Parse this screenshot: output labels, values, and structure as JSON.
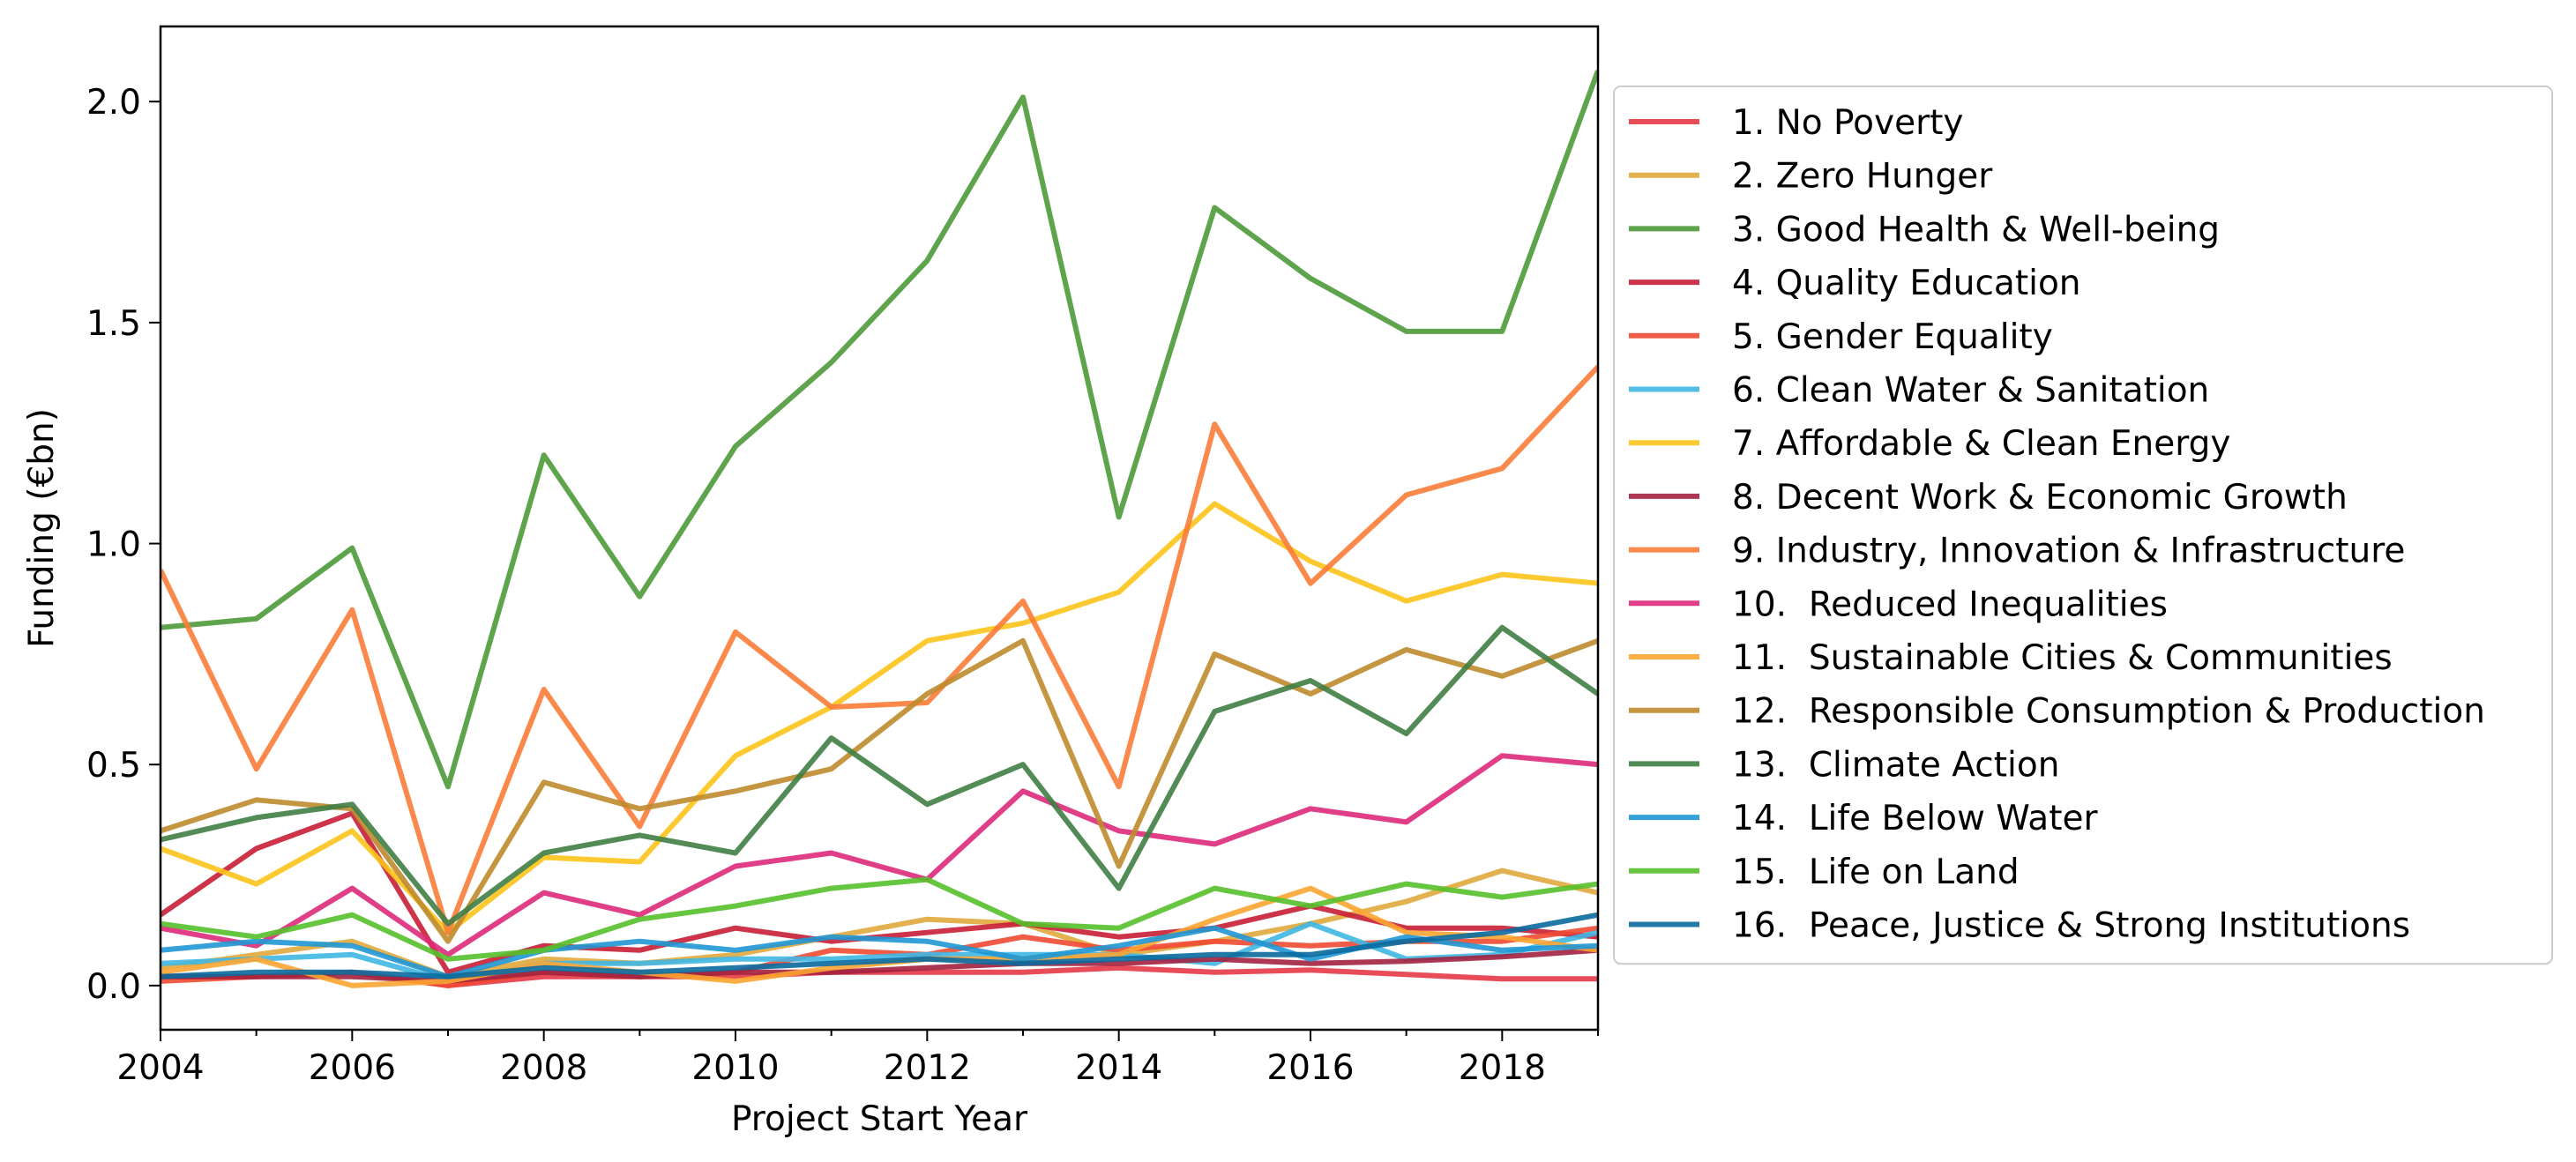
{
  "chart_data": {
    "type": "line",
    "xlabel": "Project Start Year",
    "ylabel": "Funding (€bn)",
    "xlim": [
      2004,
      2019
    ],
    "ylim": [
      -0.1,
      2.17
    ],
    "xticks": [
      2004,
      2006,
      2008,
      2010,
      2012,
      2014,
      2016,
      2018
    ],
    "yticks": [
      0.0,
      0.5,
      1.0,
      1.5,
      2.0
    ],
    "xtick_labels": [
      "2004",
      "2006",
      "2008",
      "2010",
      "2012",
      "2014",
      "2016",
      "2018"
    ],
    "ytick_labels": [
      "0.0",
      "0.5",
      "1.0",
      "1.5",
      "2.0"
    ],
    "grid": false,
    "legend_position": "right, outside plot",
    "x": [
      2004,
      2005,
      2006,
      2007,
      2008,
      2009,
      2010,
      2011,
      2012,
      2013,
      2014,
      2015,
      2016,
      2017,
      2018,
      2019
    ],
    "series": [
      {
        "name": "1. No Poverty",
        "color": "#e63946",
        "values": [
          0.02,
          0.02,
          0.03,
          0.0,
          0.02,
          0.02,
          0.02,
          0.03,
          0.03,
          0.03,
          0.04,
          0.03,
          0.035,
          0.025,
          0.015,
          0.015
        ]
      },
      {
        "name": "2. Zero Hunger",
        "color": "#e0a83c",
        "values": [
          0.04,
          0.07,
          0.1,
          0.02,
          0.06,
          0.05,
          0.07,
          0.11,
          0.15,
          0.14,
          0.07,
          0.1,
          0.14,
          0.19,
          0.26,
          0.21
        ]
      },
      {
        "name": "3. Good Health & Well-being",
        "color": "#4c9a3a",
        "values": [
          0.81,
          0.83,
          0.99,
          0.45,
          1.2,
          0.88,
          1.22,
          1.41,
          1.64,
          2.01,
          1.06,
          1.76,
          1.6,
          1.48,
          1.48,
          2.07
        ]
      },
      {
        "name": "4. Quality Education",
        "color": "#c91e35",
        "values": [
          0.16,
          0.31,
          0.39,
          0.03,
          0.09,
          0.08,
          0.13,
          0.1,
          0.12,
          0.14,
          0.11,
          0.13,
          0.18,
          0.13,
          0.13,
          0.11
        ]
      },
      {
        "name": "5. Gender Equality",
        "color": "#f04a32",
        "values": [
          0.01,
          0.02,
          0.03,
          0.0,
          0.03,
          0.02,
          0.03,
          0.08,
          0.07,
          0.11,
          0.08,
          0.1,
          0.09,
          0.1,
          0.1,
          0.13
        ]
      },
      {
        "name": "6. Clean Water & Sanitation",
        "color": "#3fb7e3",
        "values": [
          0.05,
          0.06,
          0.07,
          0.01,
          0.05,
          0.05,
          0.06,
          0.06,
          0.07,
          0.07,
          0.07,
          0.05,
          0.14,
          0.06,
          0.07,
          0.12
        ]
      },
      {
        "name": "7. Affordable & Clean Energy",
        "color": "#fcc419",
        "values": [
          0.31,
          0.23,
          0.35,
          0.12,
          0.29,
          0.28,
          0.52,
          0.63,
          0.78,
          0.82,
          0.89,
          1.09,
          0.96,
          0.87,
          0.93,
          0.91
        ]
      },
      {
        "name": "8. Decent Work & Economic Growth",
        "color": "#a3213f",
        "values": [
          0.02,
          0.02,
          0.02,
          0.01,
          0.03,
          0.02,
          0.03,
          0.03,
          0.04,
          0.05,
          0.05,
          0.06,
          0.05,
          0.055,
          0.065,
          0.08
        ]
      },
      {
        "name": "9. Industry, Innovation & Infrastructure",
        "color": "#f97c37",
        "values": [
          0.94,
          0.49,
          0.85,
          0.12,
          0.67,
          0.36,
          0.8,
          0.63,
          0.64,
          0.87,
          0.45,
          1.27,
          0.91,
          1.11,
          1.17,
          1.4
        ]
      },
      {
        "name": "10.  Reduced Inequalities",
        "color": "#dd2a7b",
        "values": [
          0.13,
          0.09,
          0.22,
          0.07,
          0.21,
          0.16,
          0.27,
          0.3,
          0.24,
          0.44,
          0.35,
          0.32,
          0.4,
          0.37,
          0.52,
          0.5
        ]
      },
      {
        "name": "11.  Sustainable Cities & Communities",
        "color": "#fca532",
        "values": [
          0.03,
          0.06,
          0.0,
          0.01,
          0.05,
          0.03,
          0.01,
          0.04,
          0.06,
          0.06,
          0.07,
          0.15,
          0.22,
          0.12,
          0.11,
          0.08
        ]
      },
      {
        "name": "12.  Responsible Consumption & Production",
        "color": "#bf8b2e",
        "values": [
          0.35,
          0.42,
          0.4,
          0.1,
          0.46,
          0.4,
          0.44,
          0.49,
          0.66,
          0.78,
          0.27,
          0.75,
          0.66,
          0.76,
          0.7,
          0.78
        ]
      },
      {
        "name": "13.  Climate Action",
        "color": "#3f7e44",
        "values": [
          0.33,
          0.38,
          0.41,
          0.14,
          0.3,
          0.34,
          0.3,
          0.56,
          0.41,
          0.5,
          0.22,
          0.62,
          0.69,
          0.57,
          0.81,
          0.66
        ]
      },
      {
        "name": "14.  Life Below Water",
        "color": "#1f97d4",
        "values": [
          0.08,
          0.1,
          0.09,
          0.02,
          0.08,
          0.1,
          0.08,
          0.11,
          0.1,
          0.06,
          0.09,
          0.13,
          0.06,
          0.11,
          0.08,
          0.09
        ]
      },
      {
        "name": "15.  Life on Land",
        "color": "#56c02b",
        "values": [
          0.14,
          0.11,
          0.16,
          0.06,
          0.08,
          0.15,
          0.18,
          0.22,
          0.24,
          0.14,
          0.13,
          0.22,
          0.18,
          0.23,
          0.2,
          0.23
        ]
      },
      {
        "name": "16.  Peace, Justice & Strong Institutions",
        "color": "#0a6a9f",
        "values": [
          0.02,
          0.03,
          0.03,
          0.02,
          0.04,
          0.03,
          0.04,
          0.05,
          0.06,
          0.05,
          0.06,
          0.07,
          0.07,
          0.1,
          0.12,
          0.16
        ]
      }
    ]
  }
}
